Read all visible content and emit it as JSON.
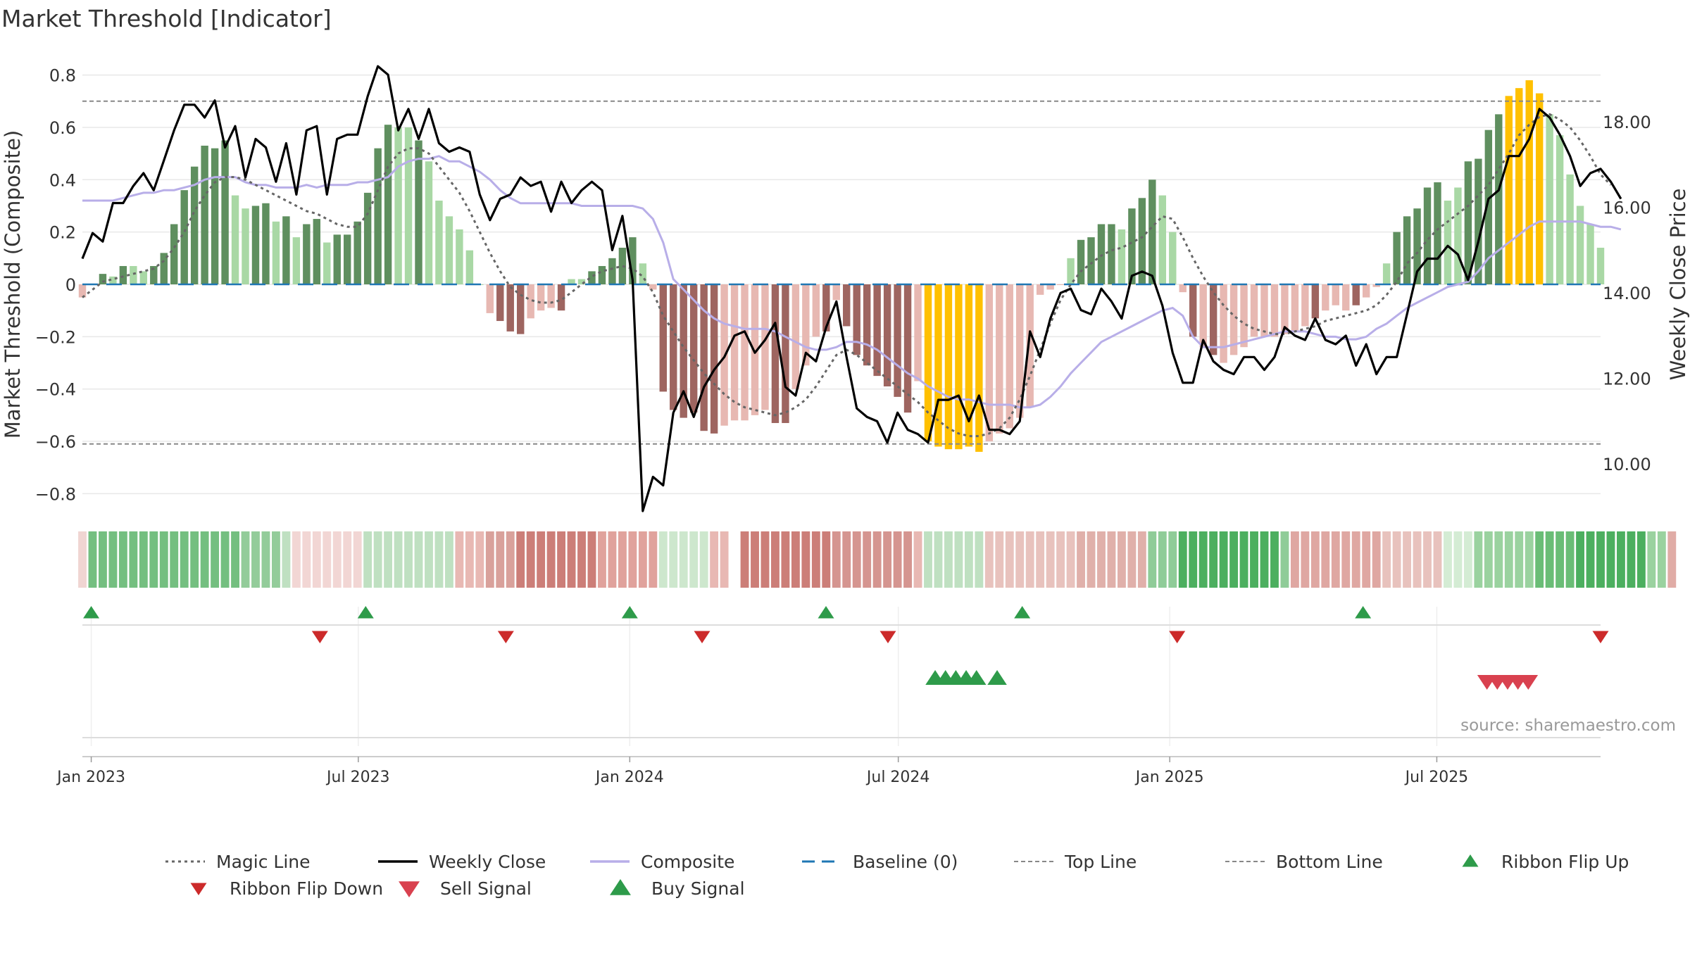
{
  "title": "Market Threshold [Indicator]",
  "source_text": "source: sharemaestro.com",
  "colors": {
    "magic": "#666666",
    "weekly_close": "#000000",
    "composite": "#b8aee8",
    "baseline": "#1f77b4",
    "guide": "#888888",
    "pos_strong": "#5f8f5f",
    "pos_weak": "#a9d8a5",
    "neg_strong": "#9e6560",
    "neg_weak": "#e7b8b2",
    "extreme": "#ffc000",
    "buy": "#2e9b4a",
    "sell": "#d9414f",
    "ribbon_up": "#2e9b4a",
    "ribbon_down": "#cc2a2a",
    "grid": "#e8e8e8"
  },
  "chart_data": {
    "type": "bar",
    "title": "Market Threshold [Indicator]",
    "ylabel_left": "Market Threshold (Composite)",
    "ylabel_right": "Weekly Close Price",
    "y_left": {
      "range": [
        -0.85,
        0.85
      ],
      "ticks": [
        0.8,
        0.6,
        0.4,
        0.2,
        0,
        -0.2,
        -0.4,
        -0.6,
        -0.8
      ],
      "tick_labels": [
        "0.8",
        "0.6",
        "0.4",
        "0.2",
        "0",
        "−0.2",
        "−0.4",
        "−0.6",
        "−0.8"
      ]
    },
    "y_right": {
      "range": [
        9.0,
        19.4
      ],
      "ticks": [
        10,
        12,
        14,
        16,
        18
      ],
      "tick_labels": [
        "10.00",
        "12.00",
        "14.00",
        "16.00",
        "18.00"
      ]
    },
    "x_axis": {
      "start": "2022-12-26",
      "end": "2025-10-20",
      "tick_dates": [
        "2023-01-01",
        "2023-07-01",
        "2024-01-01",
        "2024-07-01",
        "2025-01-01",
        "2025-07-01"
      ],
      "tick_labels": [
        "Jan 2023",
        "Jul 2023",
        "Jan 2024",
        "Jul 2024",
        "Jan 2025",
        "Jul 2025"
      ]
    },
    "top_line": 0.7,
    "bottom_line": -0.61,
    "grid": true,
    "legend_position": "bottom",
    "legend": [
      {
        "label": "Magic Line",
        "kind": "dotted"
      },
      {
        "label": "Weekly Close",
        "kind": "solid"
      },
      {
        "label": "Composite",
        "kind": "composite"
      },
      {
        "label": "Baseline (0)",
        "kind": "dashed"
      },
      {
        "label": "Top Line",
        "kind": "dashed-thin"
      },
      {
        "label": "Bottom Line",
        "kind": "dashed-thin"
      },
      {
        "label": "Ribbon Flip Up",
        "kind": "tri-up-dark"
      },
      {
        "label": "Ribbon Flip Down",
        "kind": "tri-down-dark"
      },
      {
        "label": "Sell Signal",
        "kind": "tri-down"
      },
      {
        "label": "Buy Signal",
        "kind": "tri-up"
      }
    ],
    "bars": [
      -0.05,
      0.0,
      0.04,
      0.03,
      0.07,
      0.07,
      0.05,
      0.07,
      0.12,
      0.23,
      0.36,
      0.45,
      0.53,
      0.52,
      0.55,
      0.34,
      0.29,
      0.3,
      0.31,
      0.24,
      0.26,
      0.18,
      0.23,
      0.25,
      0.16,
      0.19,
      0.19,
      0.24,
      0.35,
      0.52,
      0.61,
      0.6,
      0.6,
      0.55,
      0.47,
      0.32,
      0.26,
      0.21,
      0.13,
      0.0,
      -0.11,
      -0.14,
      -0.18,
      -0.19,
      -0.13,
      -0.1,
      -0.09,
      -0.1,
      0.02,
      0.02,
      0.05,
      0.07,
      0.1,
      0.14,
      0.18,
      0.08,
      -0.02,
      -0.41,
      -0.48,
      -0.51,
      -0.49,
      -0.56,
      -0.57,
      -0.54,
      -0.52,
      -0.52,
      -0.5,
      -0.48,
      -0.53,
      -0.53,
      -0.4,
      -0.31,
      -0.2,
      -0.18,
      -0.06,
      -0.16,
      -0.27,
      -0.31,
      -0.35,
      -0.39,
      -0.43,
      -0.49,
      -0.37,
      -0.6,
      -0.62,
      -0.63,
      -0.63,
      -0.62,
      -0.64,
      -0.6,
      -0.57,
      -0.55,
      -0.51,
      -0.47,
      -0.04,
      -0.02,
      0.0,
      0.1,
      0.17,
      0.18,
      0.23,
      0.23,
      0.21,
      0.29,
      0.33,
      0.4,
      0.34,
      0.2,
      -0.03,
      -0.2,
      -0.24,
      -0.27,
      -0.3,
      -0.27,
      -0.24,
      -0.2,
      -0.2,
      -0.2,
      -0.19,
      -0.18,
      -0.16,
      -0.13,
      -0.1,
      -0.08,
      -0.1,
      -0.08,
      -0.05,
      -0.01,
      0.08,
      0.2,
      0.26,
      0.29,
      0.37,
      0.39,
      0.32,
      0.37,
      0.47,
      0.48,
      0.59,
      0.65,
      0.72,
      0.75,
      0.78,
      0.73,
      0.65,
      0.57,
      0.42,
      0.3,
      0.23,
      0.14
    ],
    "bar_colors": [
      "neg_weak",
      "pos_weak",
      "pos_strong",
      "pos_weak",
      "pos_strong",
      "pos_weak",
      "pos_weak",
      "pos_strong",
      "pos_strong",
      "pos_strong",
      "pos_strong",
      "pos_strong",
      "pos_strong",
      "pos_strong",
      "pos_strong",
      "pos_weak",
      "pos_weak",
      "pos_strong",
      "pos_strong",
      "pos_weak",
      "pos_strong",
      "pos_weak",
      "pos_strong",
      "pos_strong",
      "pos_weak",
      "pos_strong",
      "pos_strong",
      "pos_strong",
      "pos_strong",
      "pos_strong",
      "pos_strong",
      "pos_weak",
      "pos_weak",
      "pos_strong",
      "pos_weak",
      "pos_weak",
      "pos_weak",
      "pos_weak",
      "pos_weak",
      "pos_weak",
      "neg_weak",
      "neg_strong",
      "neg_strong",
      "neg_strong",
      "neg_weak",
      "neg_weak",
      "neg_weak",
      "neg_strong",
      "pos_weak",
      "pos_weak",
      "pos_strong",
      "pos_strong",
      "pos_strong",
      "pos_strong",
      "pos_strong",
      "pos_weak",
      "neg_weak",
      "neg_strong",
      "neg_strong",
      "neg_strong",
      "neg_strong",
      "neg_strong",
      "neg_strong",
      "neg_weak",
      "neg_weak",
      "neg_weak",
      "neg_weak",
      "neg_weak",
      "neg_strong",
      "neg_strong",
      "neg_weak",
      "neg_weak",
      "neg_weak",
      "neg_strong",
      "neg_weak",
      "neg_strong",
      "neg_strong",
      "neg_strong",
      "neg_strong",
      "neg_strong",
      "neg_strong",
      "neg_strong",
      "neg_weak",
      "extreme",
      "extreme",
      "extreme",
      "extreme",
      "extreme",
      "extreme",
      "neg_weak",
      "neg_weak",
      "neg_weak",
      "neg_weak",
      "neg_weak",
      "neg_weak",
      "neg_weak",
      "neg_weak",
      "pos_weak",
      "pos_strong",
      "pos_strong",
      "pos_strong",
      "pos_strong",
      "pos_weak",
      "pos_strong",
      "pos_strong",
      "pos_strong",
      "pos_weak",
      "pos_weak",
      "neg_weak",
      "neg_strong",
      "neg_weak",
      "neg_strong",
      "neg_weak",
      "neg_weak",
      "neg_weak",
      "neg_weak",
      "neg_weak",
      "neg_weak",
      "neg_weak",
      "neg_weak",
      "neg_weak",
      "neg_strong",
      "neg_weak",
      "neg_weak",
      "neg_weak",
      "neg_strong",
      "neg_weak",
      "neg_weak",
      "pos_weak",
      "pos_strong",
      "pos_strong",
      "pos_strong",
      "pos_strong",
      "pos_strong",
      "pos_weak",
      "pos_weak",
      "pos_strong",
      "pos_strong",
      "pos_strong",
      "pos_strong",
      "extreme",
      "extreme",
      "extreme",
      "extreme",
      "pos_weak",
      "pos_weak",
      "pos_weak",
      "pos_weak",
      "pos_weak",
      "pos_weak"
    ],
    "composite": [
      0.32,
      0.32,
      0.32,
      0.32,
      0.33,
      0.34,
      0.35,
      0.35,
      0.36,
      0.36,
      0.37,
      0.38,
      0.4,
      0.41,
      0.41,
      0.41,
      0.39,
      0.38,
      0.38,
      0.37,
      0.37,
      0.37,
      0.38,
      0.37,
      0.38,
      0.38,
      0.38,
      0.39,
      0.39,
      0.4,
      0.41,
      0.45,
      0.47,
      0.48,
      0.48,
      0.49,
      0.47,
      0.47,
      0.45,
      0.43,
      0.4,
      0.36,
      0.33,
      0.31,
      0.31,
      0.31,
      0.31,
      0.31,
      0.31,
      0.3,
      0.3,
      0.3,
      0.3,
      0.3,
      0.3,
      0.29,
      0.25,
      0.16,
      0.02,
      -0.02,
      -0.06,
      -0.1,
      -0.13,
      -0.15,
      -0.16,
      -0.17,
      -0.17,
      -0.17,
      -0.18,
      -0.2,
      -0.22,
      -0.24,
      -0.25,
      -0.25,
      -0.24,
      -0.22,
      -0.22,
      -0.23,
      -0.25,
      -0.28,
      -0.31,
      -0.34,
      -0.36,
      -0.39,
      -0.41,
      -0.43,
      -0.44,
      -0.44,
      -0.45,
      -0.46,
      -0.46,
      -0.46,
      -0.47,
      -0.47,
      -0.46,
      -0.43,
      -0.39,
      -0.34,
      -0.3,
      -0.26,
      -0.22,
      -0.2,
      -0.18,
      -0.16,
      -0.14,
      -0.12,
      -0.1,
      -0.09,
      -0.12,
      -0.2,
      -0.24,
      -0.24,
      -0.24,
      -0.23,
      -0.22,
      -0.21,
      -0.2,
      -0.19,
      -0.18,
      -0.18,
      -0.18,
      -0.19,
      -0.2,
      -0.2,
      -0.21,
      -0.21,
      -0.2,
      -0.17,
      -0.15,
      -0.12,
      -0.09,
      -0.07,
      -0.05,
      -0.03,
      -0.01,
      0.0,
      0.01,
      0.05,
      0.1,
      0.13,
      0.16,
      0.19,
      0.22,
      0.24,
      0.24,
      0.24,
      0.24,
      0.24,
      0.23,
      0.22,
      0.22,
      0.21
    ],
    "magic_line": [
      -0.05,
      -0.02,
      0.01,
      0.02,
      0.03,
      0.04,
      0.05,
      0.06,
      0.09,
      0.14,
      0.2,
      0.28,
      0.34,
      0.39,
      0.41,
      0.41,
      0.4,
      0.38,
      0.36,
      0.34,
      0.32,
      0.3,
      0.28,
      0.27,
      0.25,
      0.23,
      0.22,
      0.22,
      0.27,
      0.36,
      0.45,
      0.5,
      0.52,
      0.52,
      0.5,
      0.45,
      0.4,
      0.35,
      0.28,
      0.2,
      0.12,
      0.05,
      -0.01,
      -0.04,
      -0.06,
      -0.07,
      -0.07,
      -0.06,
      -0.03,
      0.0,
      0.03,
      0.05,
      0.06,
      0.07,
      0.06,
      0.03,
      -0.03,
      -0.12,
      -0.18,
      -0.24,
      -0.29,
      -0.34,
      -0.38,
      -0.42,
      -0.45,
      -0.47,
      -0.48,
      -0.49,
      -0.5,
      -0.49,
      -0.47,
      -0.44,
      -0.39,
      -0.33,
      -0.27,
      -0.25,
      -0.27,
      -0.3,
      -0.33,
      -0.36,
      -0.39,
      -0.42,
      -0.45,
      -0.49,
      -0.52,
      -0.55,
      -0.57,
      -0.58,
      -0.58,
      -0.57,
      -0.55,
      -0.51,
      -0.44,
      -0.35,
      -0.25,
      -0.15,
      -0.06,
      0.0,
      0.05,
      0.08,
      0.11,
      0.13,
      0.14,
      0.16,
      0.18,
      0.22,
      0.26,
      0.25,
      0.18,
      0.1,
      0.03,
      -0.03,
      -0.08,
      -0.12,
      -0.15,
      -0.17,
      -0.18,
      -0.19,
      -0.19,
      -0.18,
      -0.17,
      -0.16,
      -0.14,
      -0.13,
      -0.12,
      -0.11,
      -0.1,
      -0.08,
      -0.04,
      0.01,
      0.08,
      0.12,
      0.17,
      0.21,
      0.24,
      0.27,
      0.3,
      0.34,
      0.38,
      0.44,
      0.5,
      0.57,
      0.61,
      0.64,
      0.65,
      0.63,
      0.6,
      0.55,
      0.49,
      0.42,
      0.38
    ],
    "weekly_close": [
      14.8,
      15.4,
      15.2,
      16.1,
      16.1,
      16.5,
      16.8,
      16.4,
      17.1,
      17.8,
      18.4,
      18.4,
      18.1,
      18.5,
      17.4,
      17.9,
      16.7,
      17.6,
      17.4,
      16.6,
      17.5,
      16.3,
      17.8,
      17.9,
      16.3,
      17.6,
      17.7,
      17.7,
      18.6,
      19.3,
      19.1,
      17.8,
      18.3,
      17.6,
      18.3,
      17.5,
      17.3,
      17.4,
      17.3,
      16.3,
      15.7,
      16.2,
      16.3,
      16.7,
      16.5,
      16.6,
      15.9,
      16.6,
      16.1,
      16.4,
      16.6,
      16.4,
      15.0,
      15.8,
      14.3,
      8.9,
      9.7,
      9.5,
      11.2,
      11.7,
      11.1,
      11.8,
      12.2,
      12.5,
      13.0,
      13.1,
      12.6,
      12.9,
      13.3,
      11.8,
      11.6,
      12.6,
      12.4,
      13.2,
      13.8,
      12.5,
      11.3,
      11.1,
      11.0,
      10.5,
      11.2,
      10.8,
      10.7,
      10.5,
      11.5,
      11.5,
      11.6,
      11.0,
      11.6,
      10.8,
      10.8,
      10.7,
      11.0,
      13.1,
      12.5,
      13.4,
      14.0,
      14.1,
      13.6,
      13.5,
      14.1,
      13.8,
      13.4,
      14.4,
      14.5,
      14.4,
      13.7,
      12.6,
      11.9,
      11.9,
      12.9,
      12.4,
      12.2,
      12.1,
      12.5,
      12.5,
      12.2,
      12.5,
      13.2,
      13.0,
      12.9,
      13.4,
      12.9,
      12.8,
      13.0,
      12.3,
      12.8,
      12.1,
      12.5,
      12.5,
      13.5,
      14.5,
      14.8,
      14.8,
      15.1,
      14.9,
      14.3,
      15.2,
      16.2,
      16.4,
      17.2,
      17.2,
      17.6,
      18.3,
      18.1,
      17.7,
      17.2,
      16.5,
      16.8,
      16.9,
      16.6,
      16.2
    ],
    "ribbon_colors": [
      "#f0d5d2",
      "#74bf80",
      "#74bf80",
      "#74bf80",
      "#74bf80",
      "#74bf80",
      "#74bf80",
      "#74bf80",
      "#74bf80",
      "#74bf80",
      "#74bf80",
      "#74bf80",
      "#74bf80",
      "#74bf80",
      "#74bf80",
      "#74bf80",
      "#93cc9a",
      "#93cc9a",
      "#93cc9a",
      "#93cc9a",
      "#bfe0c1",
      "#f2d6d4",
      "#f2d6d4",
      "#f2d6d4",
      "#f2d6d4",
      "#f2d6d4",
      "#f2d6d4",
      "#f2d6d4",
      "#bfe0c1",
      "#bfe0c1",
      "#bfe0c1",
      "#bfe0c1",
      "#bfe0c1",
      "#bfe0c1",
      "#bfe0c1",
      "#bfe0c1",
      "#bfe0c1",
      "#e8b8b3",
      "#e8b8b3",
      "#e8b8b3",
      "#d9a19b",
      "#d9a19b",
      "#d9a19b",
      "#cc7e78",
      "#cc7e78",
      "#cc7e78",
      "#cc7e78",
      "#cc7e78",
      "#cc7e78",
      "#cc7e78",
      "#cc7e78",
      "#e0a29c",
      "#e0a29c",
      "#e0a29c",
      "#e0a29c",
      "#e0a29c",
      "#e0a29c",
      "#cde7cd",
      "#cde7cd",
      "#cde7cd",
      "#cde7cd",
      "#cde7cd",
      "#e8b8b3",
      "#e8b8b3",
      "#ffffff",
      "#cc7e78",
      "#cc7e78",
      "#cc7e78",
      "#cc7e78",
      "#cc7e78",
      "#cc7e78",
      "#cc7e78",
      "#cc7e78",
      "#cc7e78",
      "#d59590",
      "#d59590",
      "#d59590",
      "#d59590",
      "#d59590",
      "#d59590",
      "#d59590",
      "#d59590",
      "#e8b8b3",
      "#bfe0c1",
      "#bfe0c1",
      "#bfe0c1",
      "#bfe0c1",
      "#bfe0c1",
      "#bfe0c1",
      "#e8c2bd",
      "#e8c2bd",
      "#e8c2bd",
      "#e8c2bd",
      "#e8c2bd",
      "#e8c2bd",
      "#e8c2bd",
      "#e8c2bd",
      "#e8c2bd",
      "#e0b0aa",
      "#e0b0aa",
      "#e0b0aa",
      "#e0b0aa",
      "#e0b0aa",
      "#e0b0aa",
      "#e0b0aa",
      "#8fcc98",
      "#8fcc98",
      "#8fcc98",
      "#4caf5f",
      "#4caf5f",
      "#4caf5f",
      "#4caf5f",
      "#4caf5f",
      "#4caf5f",
      "#4caf5f",
      "#4caf5f",
      "#4caf5f",
      "#4caf5f",
      "#8fcc98",
      "#dfa7a2",
      "#dfa7a2",
      "#dfa7a2",
      "#dfa7a2",
      "#dfa7a2",
      "#dfa7a2",
      "#dfa7a2",
      "#dfa7a2",
      "#dfa7a2",
      "#e8c2bd",
      "#e8c2bd",
      "#e8c2bd",
      "#e8c2bd",
      "#e8c2bd",
      "#e8c2bd",
      "#d4ecd4",
      "#d4ecd4",
      "#d4ecd4",
      "#9ad29f",
      "#9ad29f",
      "#9ad29f",
      "#9ad29f",
      "#9ad29f",
      "#9ad29f",
      "#6abd76",
      "#6abd76",
      "#6abd76",
      "#6abd76",
      "#4caf5f",
      "#4caf5f",
      "#4caf5f",
      "#4caf5f",
      "#4caf5f",
      "#4caf5f",
      "#4caf5f",
      "#9ad29f",
      "#9ad29f",
      "#e0aca6"
    ],
    "ribbon_flip_up": [
      "2023-01-01",
      "2023-07-06",
      "2024-01-01",
      "2024-05-13",
      "2024-09-23",
      "2025-05-12"
    ],
    "ribbon_flip_down": [
      "2023-06-05",
      "2023-10-09",
      "2024-02-19",
      "2024-06-24",
      "2025-01-06",
      "2025-10-20"
    ],
    "buy_signals": [
      "2024-07-26",
      "2024-08-02",
      "2024-08-09",
      "2024-08-16",
      "2024-08-23",
      "2024-09-06"
    ],
    "sell_signals": [
      "2025-08-04",
      "2025-08-11",
      "2025-08-18",
      "2025-08-25",
      "2025-09-01"
    ]
  }
}
